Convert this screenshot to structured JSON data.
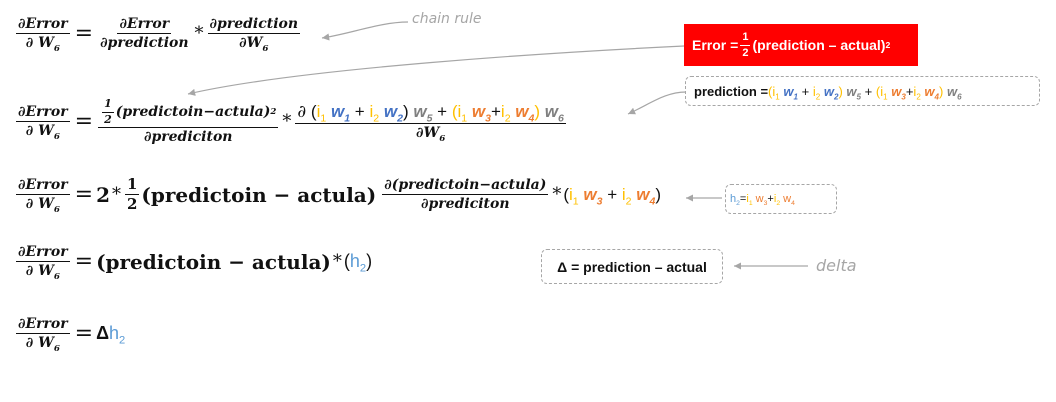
{
  "eq1": {
    "lhs_num": "∂Error",
    "lhs_den_a": "∂ W",
    "lhs_den_sub": "6",
    "r1_num": "∂Error",
    "r1_den": "∂prediction",
    "times": "*",
    "r2_num": "∂prediction",
    "r2_den_a": "∂W",
    "r2_den_sub": "6"
  },
  "chain_note": "chain rule",
  "error_box": {
    "prefix": "Error = ",
    "half_num": "1",
    "half_den": "2",
    "body": "(prediction – actual)",
    "sup": "2"
  },
  "pred_box": {
    "label": "prediction = ",
    "i": "i",
    "w": "w",
    "s1": "1",
    "s2": "2",
    "s3": "3",
    "s4": "4",
    "s5": "5",
    "s6": "6",
    "plus": "+",
    "open": "(",
    "close": ")"
  },
  "eq2": {
    "half_num": "1",
    "half_den": "2",
    "num_body": "(predictoin−actula)",
    "num_sup": "2",
    "den": "∂prediciton",
    "times": "*",
    "partial": "∂",
    "den2_a": "∂W",
    "den2_sub": "6"
  },
  "eq3": {
    "two": "2",
    "times": "*",
    "half_num": "1",
    "half_den": "2",
    "body": "(predictoin − actula)",
    "d_num": "∂(predictoin−actula)",
    "d_den": "∂prediciton"
  },
  "h2_box": {
    "h": "h",
    "sub": "2",
    "eq": " = "
  },
  "eq4": {
    "body": "(predictoin − actula)",
    "times": "*",
    "h": "h",
    "sub": "2"
  },
  "delta_box": {
    "text": "Δ = prediction – actual"
  },
  "delta_note": "delta",
  "eq5": {
    "delta": "Δ",
    "h": "h",
    "sub": "2"
  },
  "colors": {
    "red": "#ff0000",
    "gray": "#7f7f7f",
    "blue": "#4472c4",
    "orange": "#ed7d31",
    "gold": "#ffc000",
    "lightblue": "#5b9bd5"
  }
}
